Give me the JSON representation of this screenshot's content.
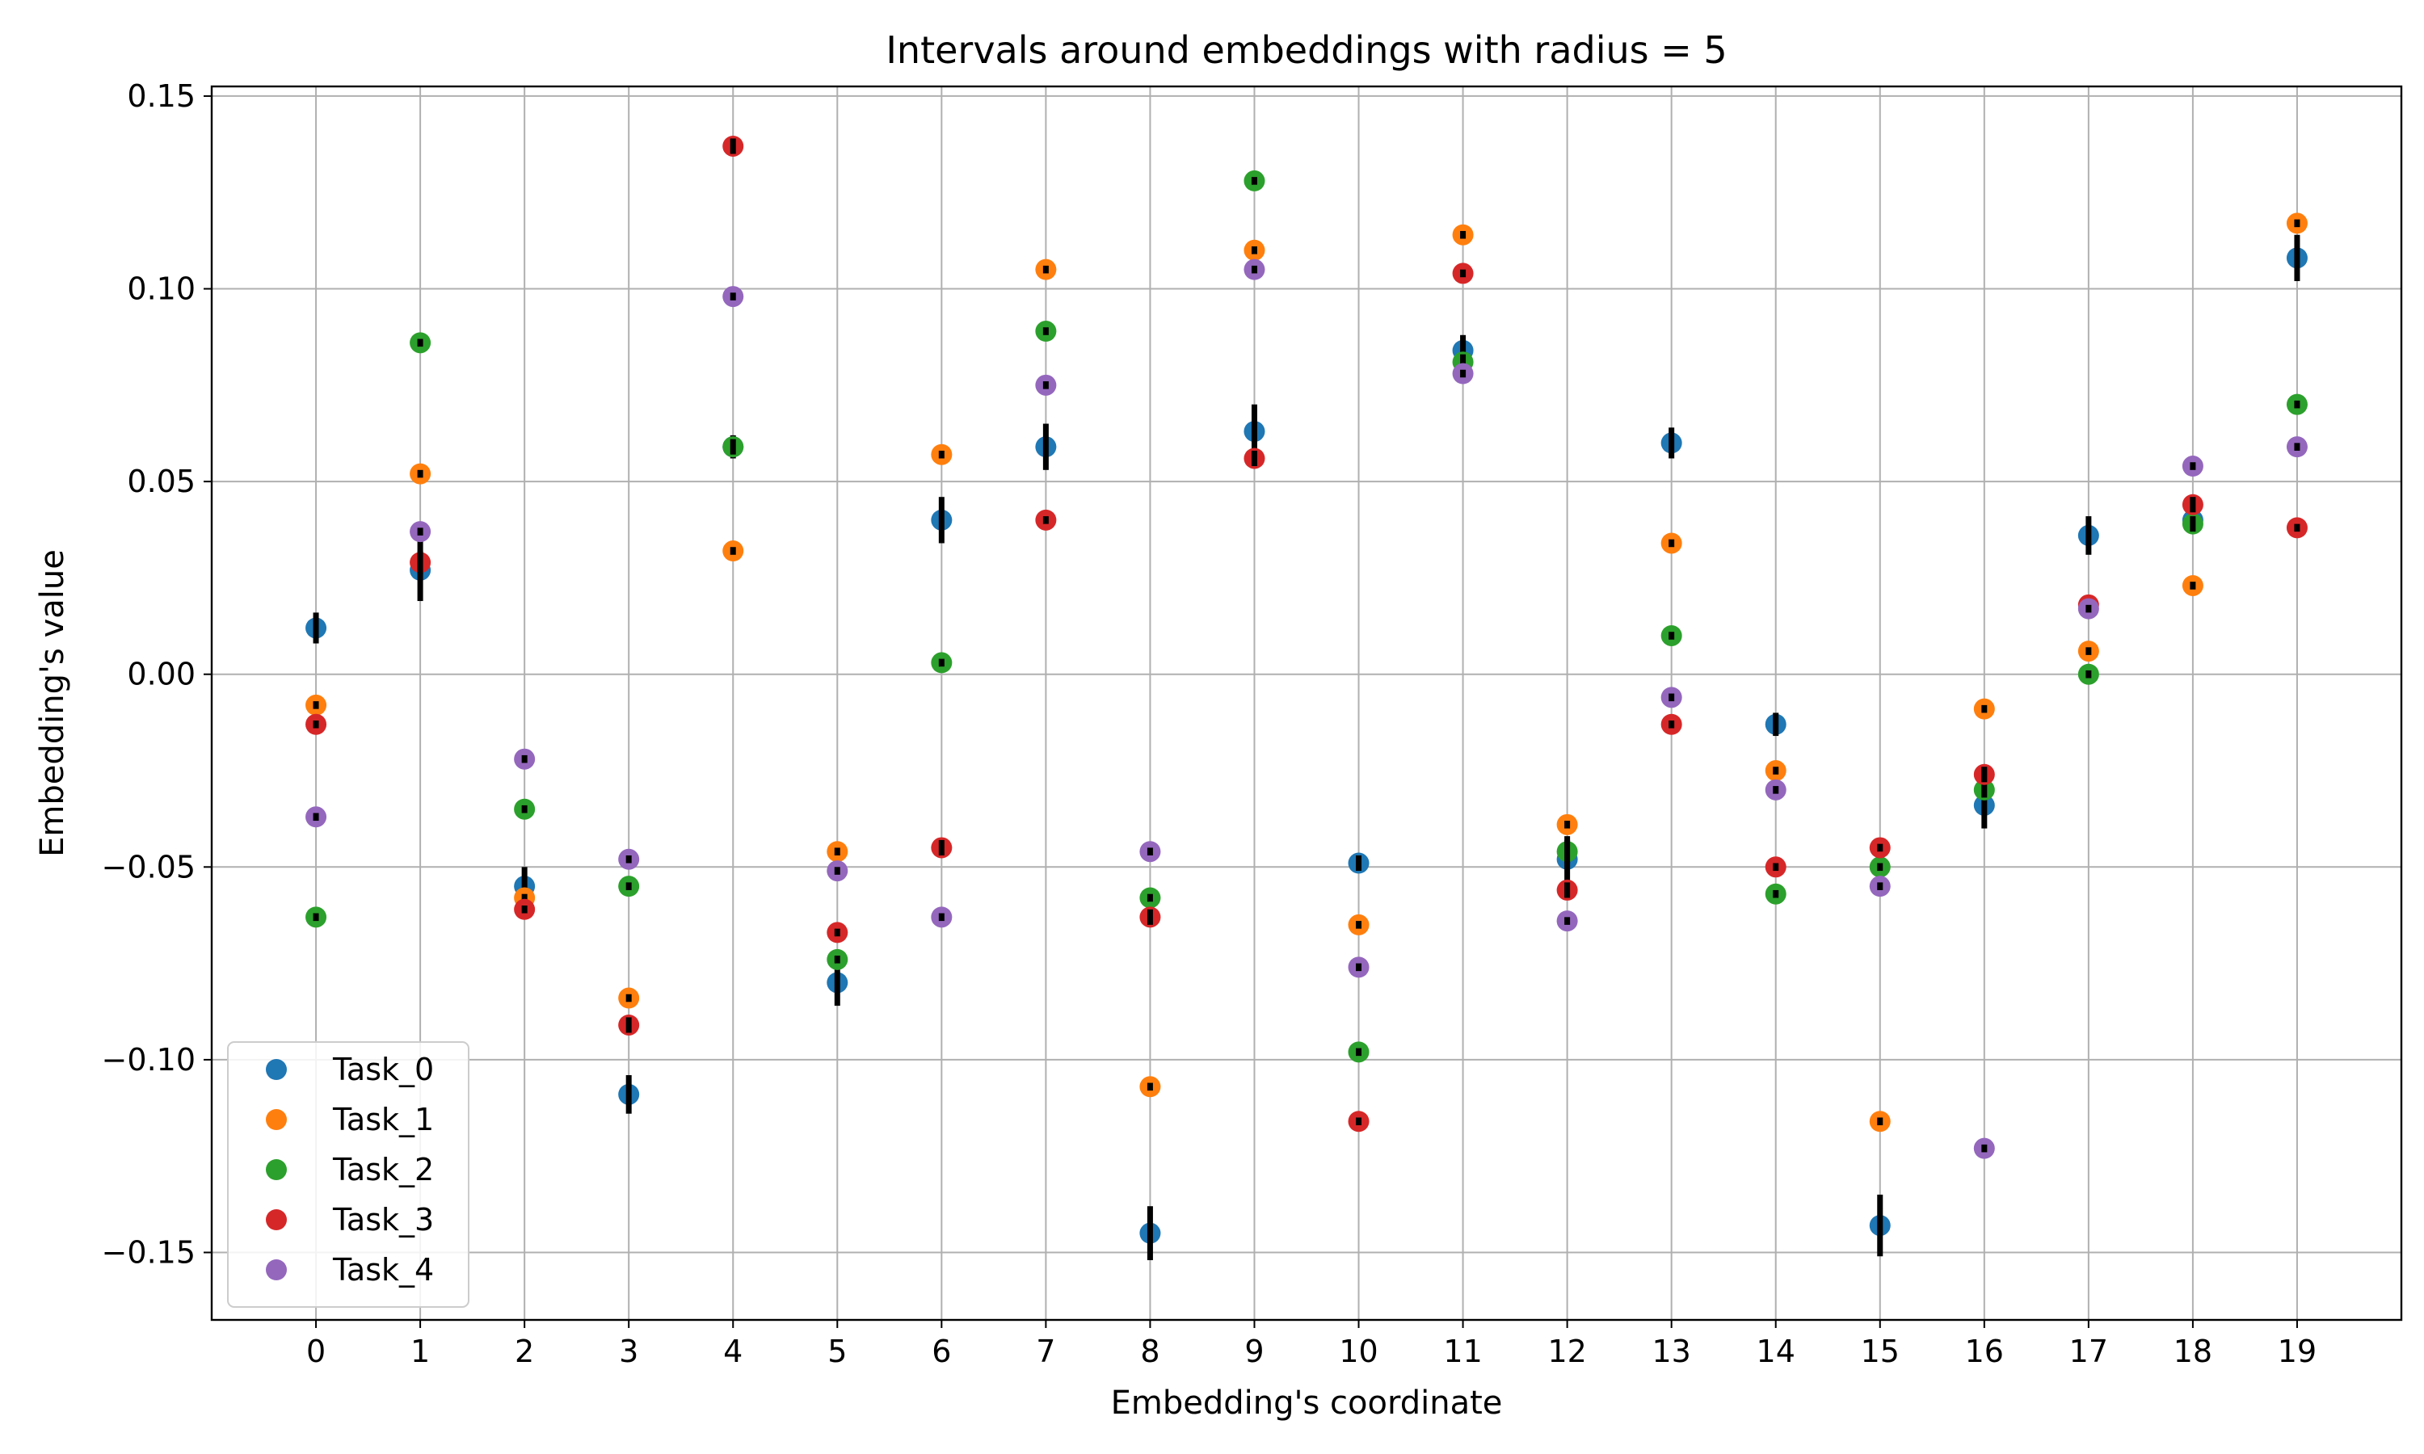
{
  "chart_data": {
    "type": "scatter",
    "title": "Intervals around embeddings with radius = 5",
    "xlabel": "Embedding's coordinate",
    "ylabel": "Embedding's value",
    "x": [
      0,
      1,
      2,
      3,
      4,
      5,
      6,
      7,
      8,
      9,
      10,
      11,
      12,
      13,
      14,
      15,
      16,
      17,
      18,
      19
    ],
    "xlim": [
      -1,
      20
    ],
    "ylim": [
      -0.1675,
      0.1525
    ],
    "xticks": [
      "0",
      "1",
      "2",
      "3",
      "4",
      "5",
      "6",
      "7",
      "8",
      "9",
      "10",
      "11",
      "12",
      "13",
      "14",
      "15",
      "16",
      "17",
      "18",
      "19"
    ],
    "yticks": [
      {
        "value": 0.15,
        "label": "0.15"
      },
      {
        "value": 0.1,
        "label": "0.10"
      },
      {
        "value": 0.05,
        "label": "0.05"
      },
      {
        "value": 0.0,
        "label": "0.00"
      },
      {
        "value": -0.05,
        "label": "−0.05"
      },
      {
        "value": -0.1,
        "label": "−0.10"
      },
      {
        "value": -0.15,
        "label": "−0.15"
      }
    ],
    "grid": true,
    "legend_position": "lower-left",
    "series": [
      {
        "name": "Task_0",
        "color": "#1f77b4",
        "values": [
          0.012,
          0.027,
          -0.055,
          -0.109,
          0.059,
          -0.08,
          0.04,
          0.059,
          -0.145,
          0.063,
          -0.049,
          0.084,
          -0.048,
          0.06,
          -0.013,
          -0.143,
          -0.034,
          0.036,
          0.04,
          0.108
        ],
        "radius": [
          0.004,
          0.008,
          0.005,
          0.005,
          0.003,
          0.006,
          0.006,
          0.006,
          0.007,
          0.007,
          0.002,
          0.004,
          0.006,
          0.004,
          0.003,
          0.008,
          0.006,
          0.005,
          0.003,
          0.006
        ]
      },
      {
        "name": "Task_1",
        "color": "#ff7f0e",
        "values": [
          -0.008,
          0.052,
          -0.058,
          -0.084,
          0.032,
          -0.046,
          0.057,
          0.105,
          -0.107,
          0.11,
          -0.065,
          0.114,
          -0.039,
          0.034,
          -0.025,
          -0.116,
          -0.009,
          0.006,
          0.023,
          0.117
        ],
        "radius": [
          0.001,
          0.001,
          0.001,
          0.001,
          0.001,
          0.001,
          0.001,
          0.001,
          0.001,
          0.001,
          0.001,
          0.001,
          0.001,
          0.001,
          0.001,
          0.001,
          0.001,
          0.001,
          0.001,
          0.001
        ]
      },
      {
        "name": "Task_2",
        "color": "#2ca02c",
        "values": [
          -0.063,
          0.086,
          -0.035,
          -0.055,
          0.059,
          -0.074,
          0.003,
          0.089,
          -0.058,
          0.128,
          -0.098,
          0.081,
          -0.046,
          0.01,
          -0.057,
          -0.05,
          -0.03,
          0.0,
          0.039,
          0.07
        ],
        "radius": [
          0.001,
          0.001,
          0.001,
          0.001,
          0.002,
          0.001,
          0.001,
          0.001,
          0.001,
          0.001,
          0.001,
          0.002,
          0.003,
          0.001,
          0.001,
          0.001,
          0.002,
          0.001,
          0.002,
          0.001
        ]
      },
      {
        "name": "Task_3",
        "color": "#d62728",
        "values": [
          -0.013,
          0.029,
          -0.061,
          -0.091,
          0.137,
          -0.067,
          -0.045,
          0.04,
          -0.063,
          0.056,
          -0.116,
          0.104,
          -0.056,
          -0.013,
          -0.05,
          -0.045,
          -0.026,
          0.018,
          0.044,
          0.038
        ],
        "radius": [
          0.001,
          0.003,
          0.001,
          0.002,
          0.002,
          0.001,
          0.002,
          0.001,
          0.002,
          0.002,
          0.001,
          0.001,
          0.002,
          0.001,
          0.001,
          0.001,
          0.002,
          0.001,
          0.002,
          0.001
        ]
      },
      {
        "name": "Task_4",
        "color": "#9467bd",
        "values": [
          -0.037,
          0.037,
          -0.022,
          -0.048,
          0.098,
          -0.051,
          -0.063,
          0.075,
          -0.046,
          0.105,
          -0.076,
          0.078,
          -0.064,
          -0.006,
          -0.03,
          -0.055,
          -0.123,
          0.017,
          0.054,
          0.059
        ],
        "radius": [
          0.001,
          0.001,
          0.001,
          0.001,
          0.001,
          0.001,
          0.001,
          0.001,
          0.001,
          0.001,
          0.001,
          0.001,
          0.001,
          0.001,
          0.001,
          0.001,
          0.001,
          0.001,
          0.001,
          0.001
        ]
      }
    ]
  }
}
